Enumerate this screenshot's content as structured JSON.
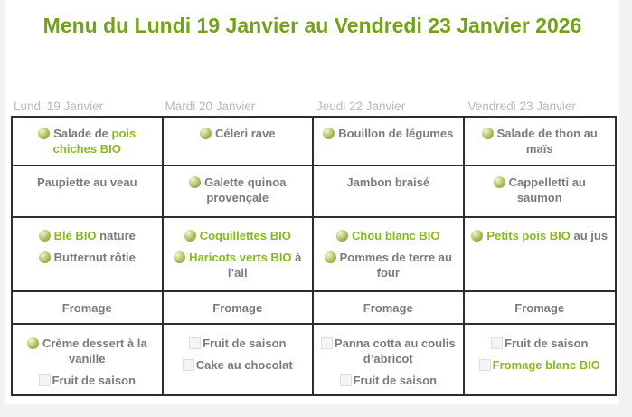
{
  "page": {
    "title": "Menu du Lundi 19 Janvier au Vendredi 23 Janvier 2026"
  },
  "colors": {
    "title_green": "#73a11b",
    "item_green": "#89b823",
    "text_gray": "#7b7b7b",
    "day_header_gray": "#b8b8b8",
    "table_border": "#2d2d2d",
    "page_background": "#f2f2f2",
    "placeholder_fill": "#f5f5f5",
    "placeholder_border": "#dedede"
  },
  "icons": {
    "bio": "bio-sphere-icon",
    "placeholder": "image-placeholder-icon"
  },
  "menu": {
    "days": [
      "Lundi 19 Janvier",
      "Mardi 20 Janvier",
      "Jeudi 22 Janvier",
      "Vendredi 23 Janvier"
    ],
    "rows": [
      {
        "id": "starter",
        "cells": [
          {
            "items": [
              {
                "icon": "bio",
                "parts": [
                  {
                    "text": "Salade de ",
                    "green": false
                  },
                  {
                    "text": "pois chiches BIO",
                    "green": true
                  }
                ]
              }
            ]
          },
          {
            "items": [
              {
                "icon": "bio",
                "parts": [
                  {
                    "text": "Céleri rave",
                    "green": false
                  }
                ]
              }
            ]
          },
          {
            "items": [
              {
                "icon": "bio",
                "parts": [
                  {
                    "text": "Bouillon de légumes",
                    "green": false
                  }
                ]
              }
            ]
          },
          {
            "items": [
              {
                "icon": "bio",
                "parts": [
                  {
                    "text": "Salade de thon au maïs",
                    "green": false
                  }
                ]
              }
            ]
          }
        ]
      },
      {
        "id": "main",
        "cells": [
          {
            "items": [
              {
                "icon": null,
                "parts": [
                  {
                    "text": "Paupiette au veau",
                    "green": false
                  }
                ]
              }
            ]
          },
          {
            "items": [
              {
                "icon": "bio",
                "parts": [
                  {
                    "text": "Galette quinoa provençale",
                    "green": false
                  }
                ]
              }
            ]
          },
          {
            "items": [
              {
                "icon": null,
                "parts": [
                  {
                    "text": "Jambon braisé",
                    "green": false
                  }
                ]
              }
            ]
          },
          {
            "items": [
              {
                "icon": "bio",
                "parts": [
                  {
                    "text": "Cappelletti au saumon",
                    "green": false
                  }
                ]
              }
            ]
          }
        ]
      },
      {
        "id": "side",
        "cells": [
          {
            "items": [
              {
                "icon": "bio",
                "parts": [
                  {
                    "text": "Blé BIO",
                    "green": true
                  },
                  {
                    "text": " nature",
                    "green": false
                  }
                ]
              },
              {
                "icon": "bio",
                "parts": [
                  {
                    "text": "Butternut rôtie",
                    "green": false
                  }
                ]
              }
            ]
          },
          {
            "items": [
              {
                "icon": "bio",
                "parts": [
                  {
                    "text": "Coquillettes BIO",
                    "green": true
                  }
                ]
              },
              {
                "icon": "bio",
                "parts": [
                  {
                    "text": "Haricots verts BIO",
                    "green": true
                  },
                  {
                    "text": " à l’ail",
                    "green": false
                  }
                ]
              }
            ]
          },
          {
            "items": [
              {
                "icon": "bio",
                "parts": [
                  {
                    "text": "Chou blanc BIO",
                    "green": true
                  }
                ]
              },
              {
                "icon": "bio",
                "parts": [
                  {
                    "text": "Pommes de terre au four",
                    "green": false
                  }
                ]
              }
            ]
          },
          {
            "items": [
              {
                "icon": "bio",
                "parts": [
                  {
                    "text": "Petits pois BIO",
                    "green": true
                  },
                  {
                    "text": " au jus",
                    "green": false
                  }
                ]
              }
            ]
          }
        ]
      },
      {
        "id": "cheese",
        "cells": [
          {
            "items": [
              {
                "icon": null,
                "parts": [
                  {
                    "text": "Fromage",
                    "green": false
                  }
                ]
              }
            ]
          },
          {
            "items": [
              {
                "icon": null,
                "parts": [
                  {
                    "text": "Fromage",
                    "green": false
                  }
                ]
              }
            ]
          },
          {
            "items": [
              {
                "icon": null,
                "parts": [
                  {
                    "text": "Fromage",
                    "green": false
                  }
                ]
              }
            ]
          },
          {
            "items": [
              {
                "icon": null,
                "parts": [
                  {
                    "text": "Fromage",
                    "green": false
                  }
                ]
              }
            ]
          }
        ]
      },
      {
        "id": "dessert",
        "cells": [
          {
            "items": [
              {
                "icon": "bio",
                "parts": [
                  {
                    "text": "Crème dessert à la vanille",
                    "green": false
                  }
                ]
              },
              {
                "icon": "placeholder",
                "parts": [
                  {
                    "text": "Fruit de saison",
                    "green": false
                  }
                ]
              }
            ]
          },
          {
            "items": [
              {
                "icon": "placeholder",
                "parts": [
                  {
                    "text": "Fruit de saison",
                    "green": false
                  }
                ]
              },
              {
                "icon": "placeholder",
                "parts": [
                  {
                    "text": "Cake au chocolat",
                    "green": false
                  }
                ]
              }
            ]
          },
          {
            "items": [
              {
                "icon": "placeholder",
                "parts": [
                  {
                    "text": "Panna cotta au coulis d’abricot",
                    "green": false
                  }
                ]
              },
              {
                "icon": "placeholder",
                "parts": [
                  {
                    "text": "Fruit de saison",
                    "green": false
                  }
                ]
              }
            ]
          },
          {
            "items": [
              {
                "icon": "placeholder",
                "parts": [
                  {
                    "text": "Fruit de saison",
                    "green": false
                  }
                ]
              },
              {
                "icon": "placeholder",
                "parts": [
                  {
                    "text": "Fromage blanc BIO",
                    "green": true
                  }
                ]
              }
            ]
          }
        ]
      }
    ]
  }
}
